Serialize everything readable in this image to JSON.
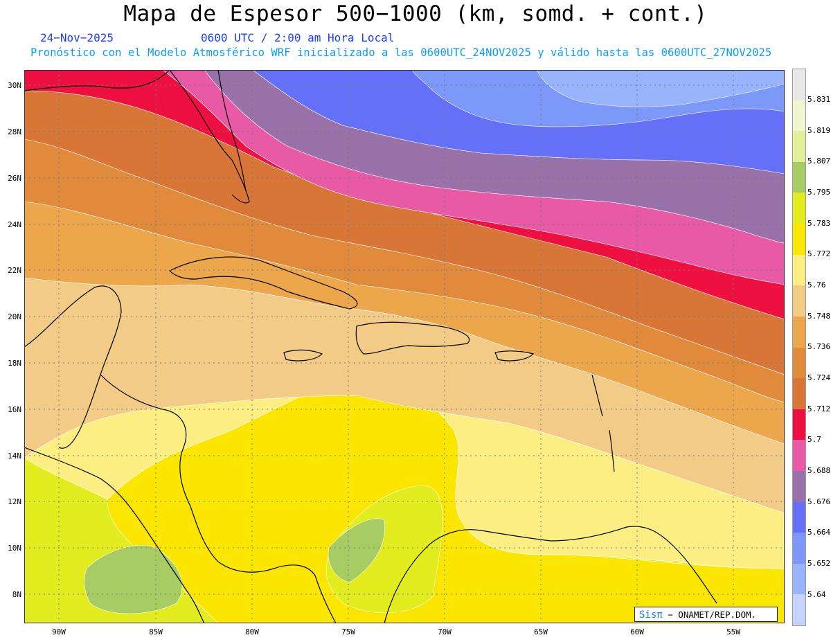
{
  "header": {
    "title": "Mapa de Espesor 500−1000 (km, somd. + cont.)",
    "date": "24−Nov−2025",
    "time": "0600 UTC / 2:00 am Hora Local",
    "model_line": "Pronóstico con el Modelo Atmosférico WRF inicializado a las 0600UTC_24NOV2025 y válido hasta las  0600UTC_27NOV2025"
  },
  "map": {
    "lat_labels": [
      "30N",
      "28N",
      "26N",
      "24N",
      "22N",
      "20N",
      "18N",
      "16N",
      "14N",
      "12N",
      "10N",
      "8N"
    ],
    "lon_labels": [
      "90W",
      "85W",
      "80W",
      "75W",
      "70W",
      "65W",
      "60W",
      "55W"
    ]
  },
  "legend": {
    "levels": [
      "5.831",
      "5.819",
      "5.807",
      "5.795",
      "5.783",
      "5.772",
      "5.76",
      "5.748",
      "5.736",
      "5.724",
      "5.712",
      "5.7",
      "5.688",
      "5.676",
      "5.664",
      "5.652",
      "5.64"
    ],
    "colors": [
      "#e8e8e8",
      "#f0f6d0",
      "#e2f09a",
      "#a8cc64",
      "#e2ec1e",
      "#fae600",
      "#fdee84",
      "#f2cc86",
      "#eca64c",
      "#e08a3c",
      "#d87638",
      "#ee1040",
      "#e85aa6",
      "#9872a8",
      "#6470f8",
      "#7c98f8",
      "#98b4fc",
      "#c4d4fc"
    ]
  },
  "credit": {
    "logo": "Sisπ",
    "text": "− ONAMET/REP.DOM."
  }
}
